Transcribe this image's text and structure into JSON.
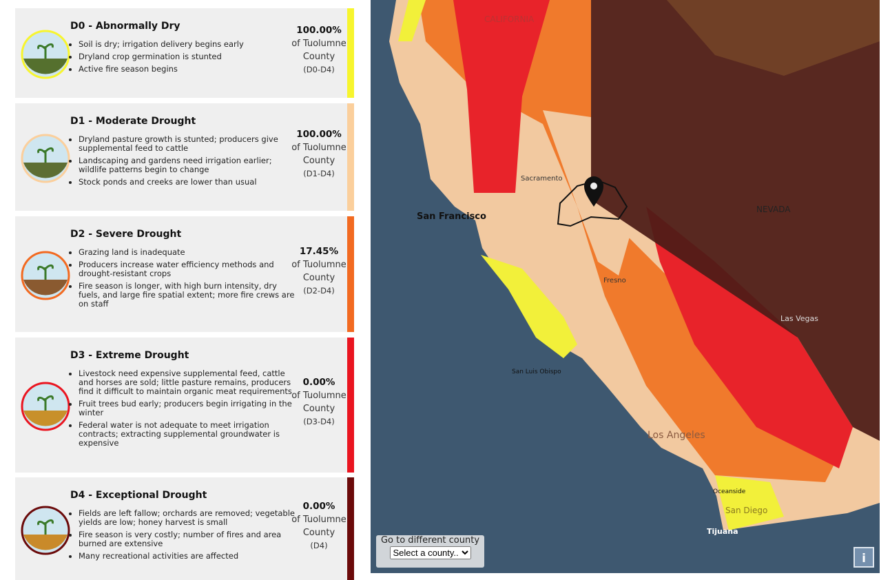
{
  "cards": [
    {
      "title": "D0 - Abnormally Dry",
      "impacts": [
        "Soil is dry; irrigation delivery begins early",
        "Dryland crop germination is stunted",
        "Active fire season begins"
      ],
      "percent": "100.00%",
      "county": "of Tuolumne County",
      "range": "(D0-D4)",
      "color": "#f7f52e"
    },
    {
      "title": "D1 - Moderate Drought",
      "impacts": [
        "Dryland pasture growth is stunted; producers give supplemental feed to cattle",
        "Landscaping and gardens need irrigation earlier; wildlife patterns begin to change",
        "Stock ponds and creeks are lower than usual"
      ],
      "percent": "100.00%",
      "county": "of Tuolumne County",
      "range": "(D1-D4)",
      "color": "#fbcf9c"
    },
    {
      "title": "D2 - Severe Drought",
      "impacts": [
        "Grazing land is inadequate",
        "Producers increase water efficiency methods and drought-resistant crops",
        "Fire season is longer, with high burn intensity, dry fuels, and large fire spatial extent; more fire crews are on staff"
      ],
      "percent": "17.45%",
      "county": "of Tuolumne County",
      "range": "(D2-D4)",
      "color": "#f26a21"
    },
    {
      "title": "D3 - Extreme Drought",
      "impacts": [
        "Livestock need expensive supplemental feed, cattle and horses are sold; little pasture remains, producers find it difficult to maintain organic meat requirements",
        "Fruit trees bud early; producers begin irrigating in the winter",
        "Federal water is not adequate to meet irrigation contracts; extracting supplemental groundwater is expensive"
      ],
      "percent": "0.00%",
      "county": "of Tuolumne County",
      "range": "(D3-D4)",
      "color": "#ea1520"
    },
    {
      "title": "D4 - Exceptional Drought",
      "impacts": [
        "Fields are left fallow; orchards are removed; vegetable yields are low; honey harvest is small",
        "Fire season is very costly; number of fires and area burned are extensive",
        "Many recreational activities are affected"
      ],
      "percent": "0.00%",
      "county": "of Tuolumne County",
      "range": "(D4)",
      "color": "#6b0a0a"
    }
  ],
  "map": {
    "labels": [
      "San Francisco",
      "Sacramento",
      "Fresno",
      "NEVADA",
      "Las Vegas",
      "Los Angeles",
      "San Diego",
      "Tijuana",
      "Oceanside",
      "San Luis Obispo",
      "CALIFORNIA"
    ],
    "county_picker": {
      "label": "Go to different county",
      "placeholder": "Select a county.."
    },
    "info_button": "i"
  }
}
